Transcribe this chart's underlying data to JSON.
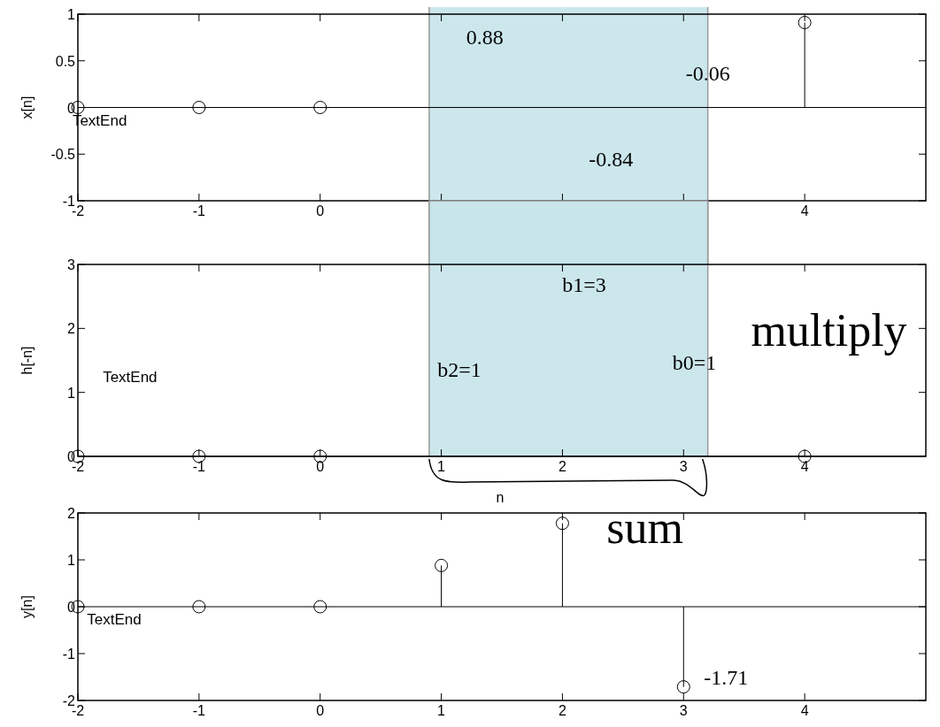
{
  "chart_data": [
    {
      "type": "lollipop",
      "ylabel": "x[n]",
      "x": [
        -2,
        -1,
        0,
        1,
        2,
        3,
        4
      ],
      "values": [
        0,
        0,
        0,
        null,
        null,
        null,
        0.91
      ],
      "color": "#000000",
      "marker": "circle",
      "xlim": [
        -2,
        5
      ],
      "xticks": [
        -2,
        -1,
        0,
        {
          "value": 1,
          "label": null
        },
        {
          "value": 2,
          "label": null
        },
        {
          "value": 3,
          "label": null
        },
        4
      ],
      "ylim": [
        -1,
        1
      ],
      "yticks": [
        -1,
        -0.5,
        0,
        0.5,
        1
      ],
      "bands": [
        {
          "axis": "x",
          "from": 0.9,
          "to": 3.2,
          "color": "#c6e4ea"
        }
      ],
      "annotations": [
        "TextEnd",
        "0.88",
        "-0.06",
        "-0.84"
      ]
    },
    {
      "type": "lollipop",
      "ylabel": "h[-n]",
      "x": [
        -2,
        -1,
        0,
        1,
        2,
        3,
        4
      ],
      "values": [
        0,
        0,
        0,
        null,
        null,
        null,
        0
      ],
      "color": "#000000",
      "marker": "circle",
      "xlim": [
        -2,
        5
      ],
      "xticks": [
        -2,
        -1,
        0,
        1,
        2,
        3,
        4
      ],
      "ylim": [
        0,
        3
      ],
      "yticks": [
        0,
        1,
        2,
        3
      ],
      "bands": [
        {
          "axis": "x",
          "from": 0.9,
          "to": 3.2,
          "color": "#c6e4ea"
        }
      ],
      "annotations": [
        "TextEnd",
        "b1=3",
        "b2=1",
        "b0=1",
        "multiply",
        "n"
      ]
    },
    {
      "type": "lollipop",
      "ylabel": "y[n]",
      "x": [
        -2,
        -1,
        0,
        1,
        2,
        3
      ],
      "values": [
        0,
        0,
        0,
        0.88,
        1.78,
        -1.71
      ],
      "color": "#000000",
      "marker": "circle",
      "xlim": [
        -2,
        5
      ],
      "xticks": [
        -2,
        -1,
        0,
        1,
        2,
        3,
        4
      ],
      "ylim": [
        -2,
        2
      ],
      "yticks": [
        -2,
        -1,
        0,
        1,
        2
      ],
      "annotations": [
        "TextEnd",
        "sum",
        "-1.71"
      ]
    }
  ]
}
